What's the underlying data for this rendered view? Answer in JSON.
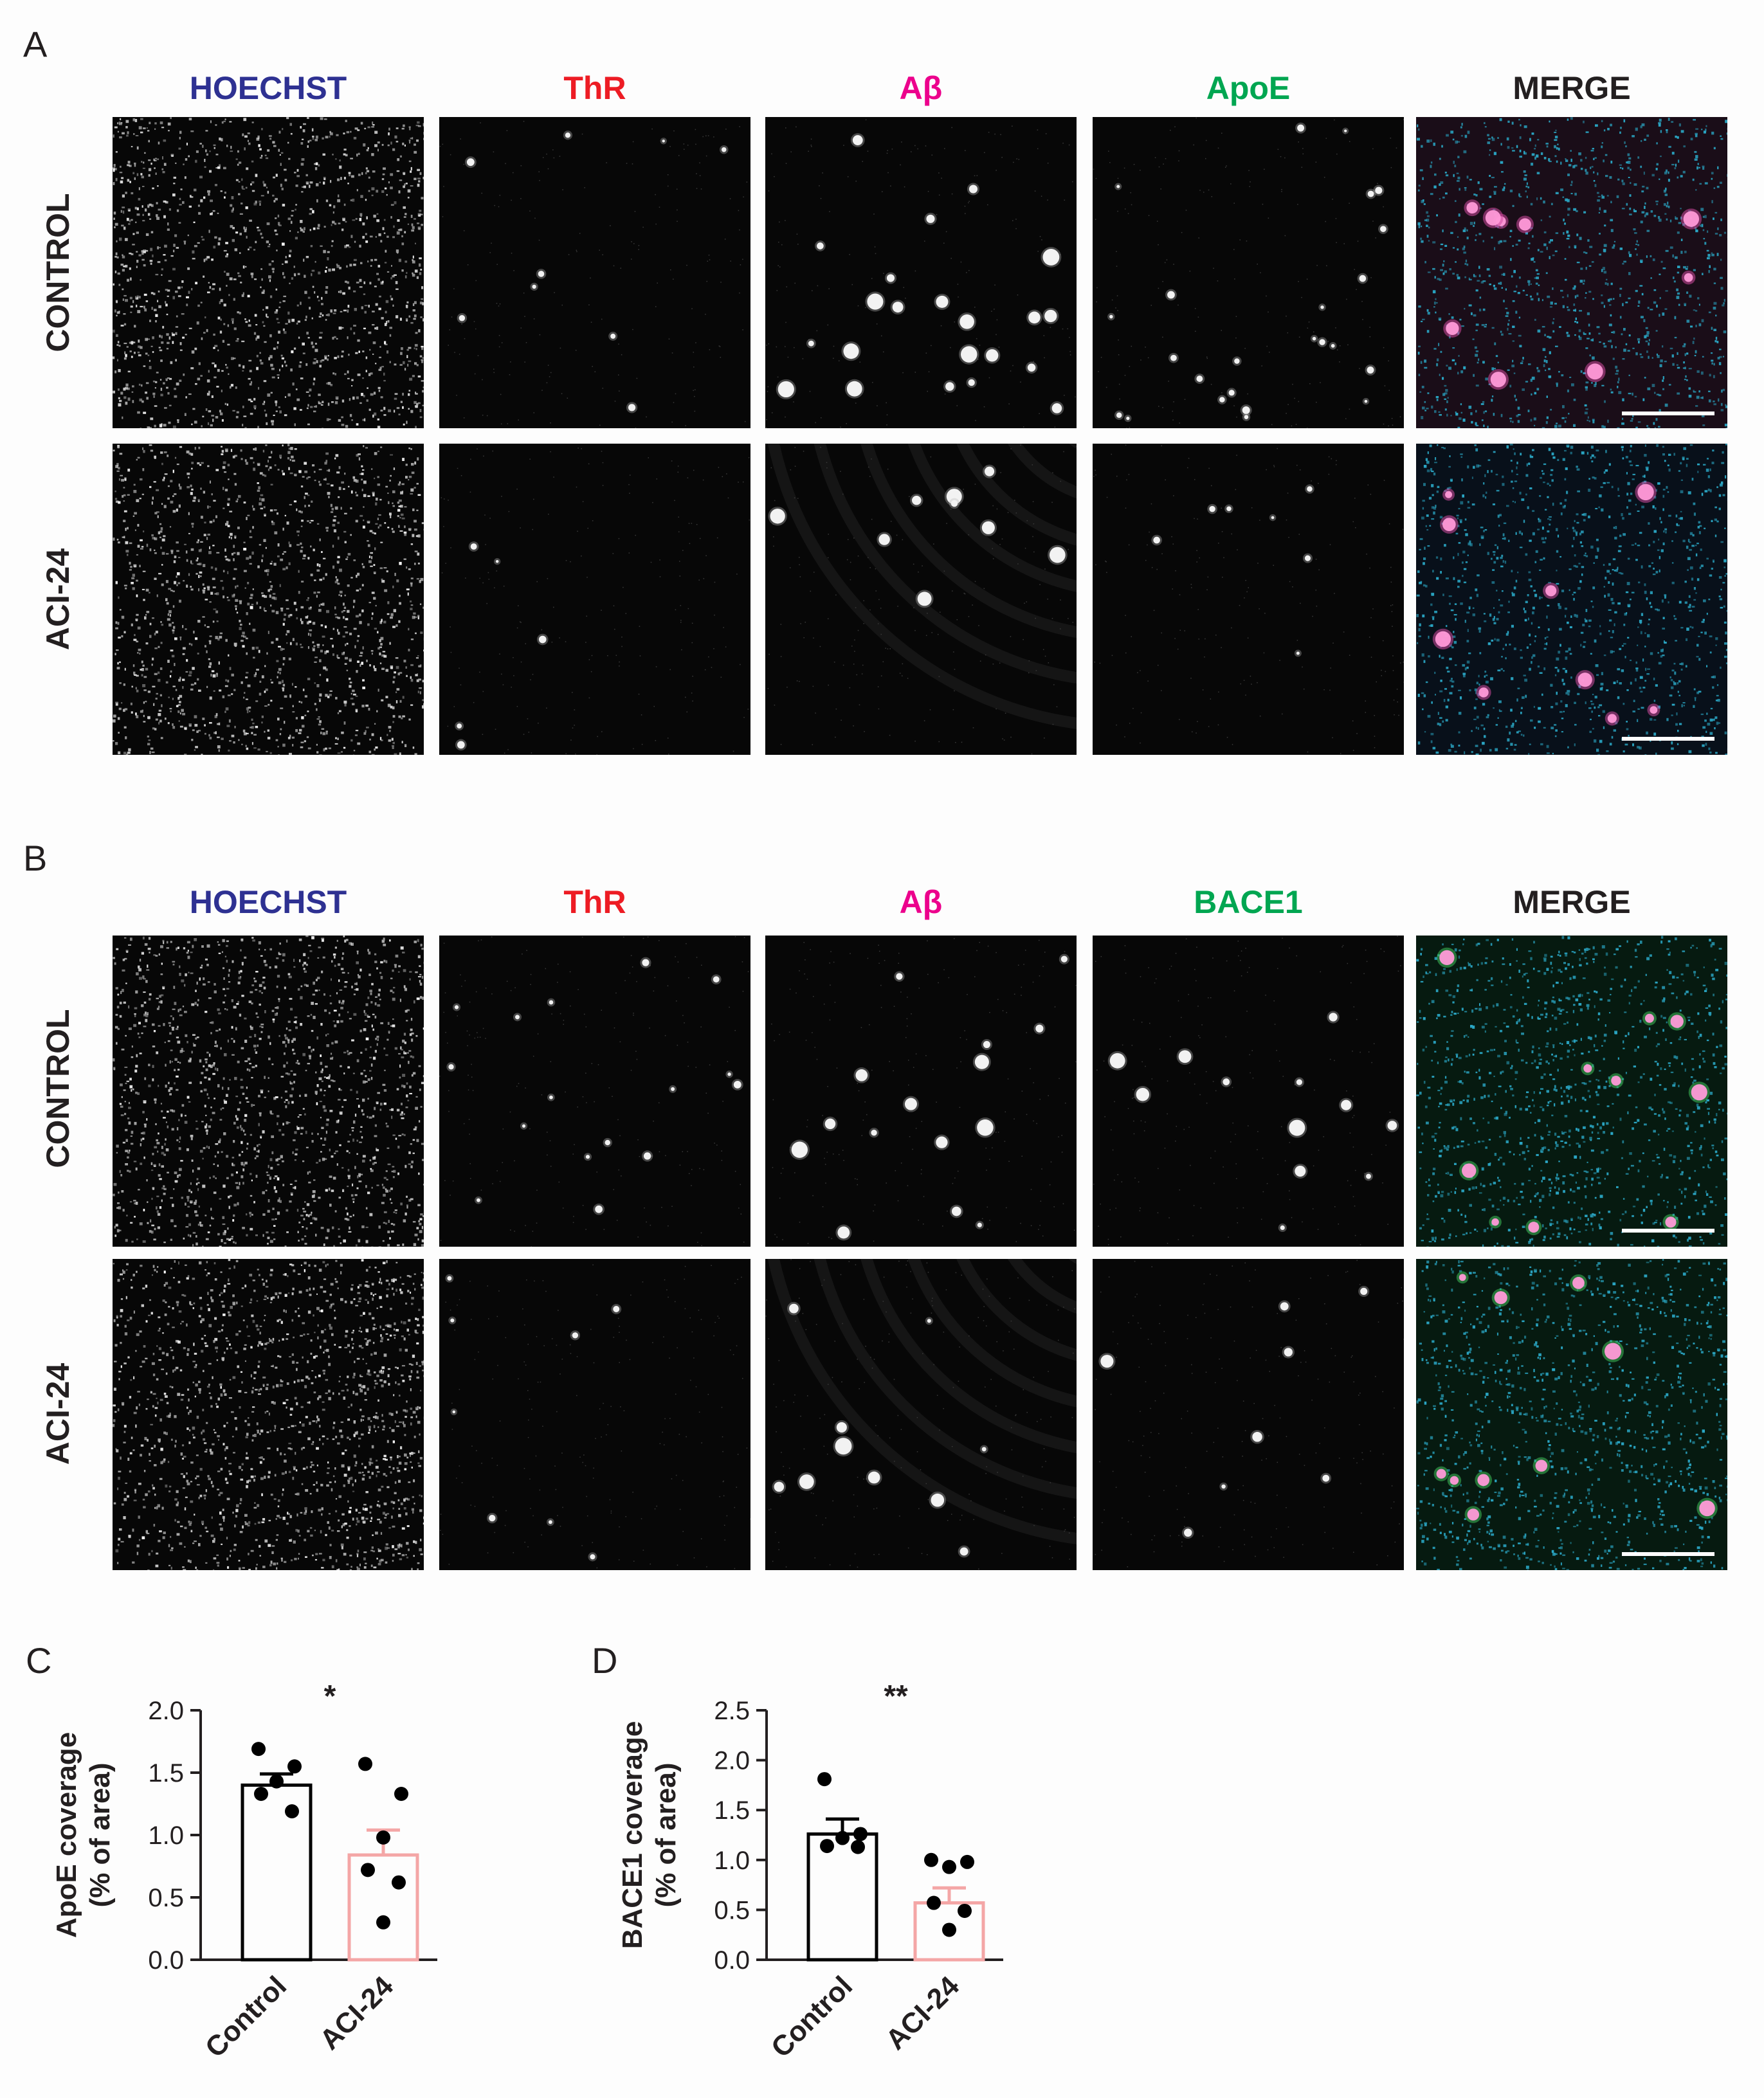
{
  "panel_a": {
    "letter": "A",
    "columns": [
      "HOECHST",
      "ThR",
      "Aβ",
      "ApoE",
      "MERGE"
    ],
    "rows": [
      "CONTROL",
      "ACI-24"
    ]
  },
  "panel_b": {
    "letter": "B",
    "columns": [
      "HOECHST",
      "ThR",
      "Aβ",
      "BACE1",
      "MERGE"
    ],
    "rows": [
      "CONTROL",
      "ACI-24"
    ]
  },
  "colors": {
    "hoechst": "#2e3192",
    "thr": "#ed1c24",
    "abeta": "#ec008c",
    "apoe": "#00a651",
    "bace1": "#00a651",
    "merge": "#231f20",
    "aci24_bar": "#f4a6a6"
  },
  "chart_data": [
    {
      "type": "bar",
      "panel": "C",
      "categories": [
        "Control",
        "ACI-24"
      ],
      "values": [
        1.4,
        0.84
      ],
      "errors": [
        0.09,
        0.2
      ],
      "points": [
        [
          1.69,
          1.55,
          1.43,
          1.33,
          1.19
        ],
        [
          1.57,
          1.33,
          0.98,
          0.72,
          0.62,
          0.3
        ]
      ],
      "ylabel": "ApoE coverage",
      "ylabel2": "(% of area)",
      "ylim": [
        0,
        2.0
      ],
      "yticks": [
        "0.0",
        "0.5",
        "1.0",
        "1.5",
        "2.0"
      ],
      "significance": "*",
      "bar_colors": [
        "#000000",
        "#f4a6a6"
      ]
    },
    {
      "type": "bar",
      "panel": "D",
      "categories": [
        "Control",
        "ACI-24"
      ],
      "values": [
        1.26,
        0.57
      ],
      "errors": [
        0.15,
        0.15
      ],
      "points": [
        [
          1.81,
          1.26,
          1.22,
          1.14,
          1.13
        ],
        [
          1.0,
          0.98,
          0.93,
          0.57,
          0.49,
          0.3
        ]
      ],
      "ylabel": "BACE1 coverage",
      "ylabel2": "(% of area)",
      "ylim": [
        0,
        2.5
      ],
      "yticks": [
        "0.0",
        "0.5",
        "1.0",
        "1.5",
        "2.0",
        "2.5"
      ],
      "significance": "**",
      "bar_colors": [
        "#000000",
        "#f4a6a6"
      ]
    }
  ]
}
